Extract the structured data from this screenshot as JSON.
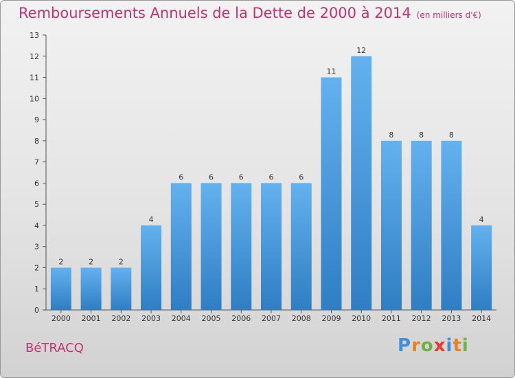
{
  "title": "Remboursements Annuels de la Dette de 2000 à 2014",
  "subtitle": "(en milliers d'€)",
  "commune": "BéTRACQ",
  "logo": {
    "text": "Proxiti",
    "letters": [
      "P",
      "r",
      "o",
      "x",
      "i",
      "t",
      "i"
    ],
    "colors": [
      "#3f8fd6",
      "#f07f1a",
      "#6cb33f",
      "#e8392a",
      "#3f8fd6",
      "#f07f1a",
      "#6cb33f"
    ]
  },
  "colors": {
    "accent": "#c0336e",
    "bar_top": "#63b1ee",
    "bar_bottom": "#2f7ec3"
  },
  "chart_data": {
    "type": "bar",
    "categories": [
      "2000",
      "2001",
      "2002",
      "2003",
      "2004",
      "2005",
      "2006",
      "2007",
      "2008",
      "2009",
      "2010",
      "2011",
      "2012",
      "2013",
      "2014"
    ],
    "values": [
      2,
      2,
      2,
      4,
      6,
      6,
      6,
      6,
      6,
      11,
      12,
      8,
      8,
      8,
      4
    ],
    "ylim": [
      0,
      13
    ],
    "yticks": [
      0,
      1,
      2,
      3,
      4,
      5,
      6,
      7,
      8,
      9,
      10,
      11,
      12,
      13
    ],
    "grid": false,
    "data_labels": true
  }
}
